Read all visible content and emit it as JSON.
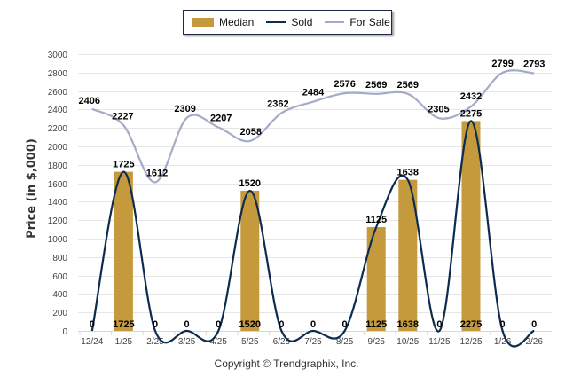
{
  "chart_data": {
    "type": "bar",
    "title": "",
    "xlabel": "",
    "ylabel": "Price (in $,000)",
    "ylim": [
      0,
      3000
    ],
    "yticks": [
      0,
      200,
      400,
      600,
      800,
      1000,
      1200,
      1400,
      1600,
      1800,
      2000,
      2200,
      2400,
      2600,
      2800,
      3000
    ],
    "grid": true,
    "legend_position": "top-center",
    "categories": [
      "12/24",
      "1/25",
      "2/25",
      "3/25",
      "4/25",
      "5/25",
      "6/25",
      "7/25",
      "8/25",
      "9/25",
      "10/25",
      "11/25",
      "12/25",
      "1/26",
      "2/26"
    ],
    "series": [
      {
        "name": "Median",
        "type": "bar",
        "color": "#C49A3C",
        "values": [
          0,
          1725,
          0,
          0,
          0,
          1520,
          0,
          0,
          0,
          1125,
          1638,
          0,
          2275,
          0,
          0
        ]
      },
      {
        "name": "Sold",
        "type": "line",
        "color": "#0D2B4E",
        "values": [
          0,
          1725,
          0,
          0,
          0,
          1520,
          0,
          0,
          0,
          1125,
          1638,
          0,
          2275,
          0,
          0
        ]
      },
      {
        "name": "For Sale",
        "type": "line",
        "color": "#A3ABC8",
        "values": [
          2406,
          2227,
          1612,
          2309,
          2207,
          2058,
          2362,
          2484,
          2576,
          2569,
          2569,
          2305,
          2432,
          2799,
          2793
        ]
      }
    ]
  },
  "legend": {
    "median": "Median",
    "sold": "Sold",
    "for_sale": "For Sale"
  },
  "copyright": "Copyright © Trendgraphix, Inc."
}
